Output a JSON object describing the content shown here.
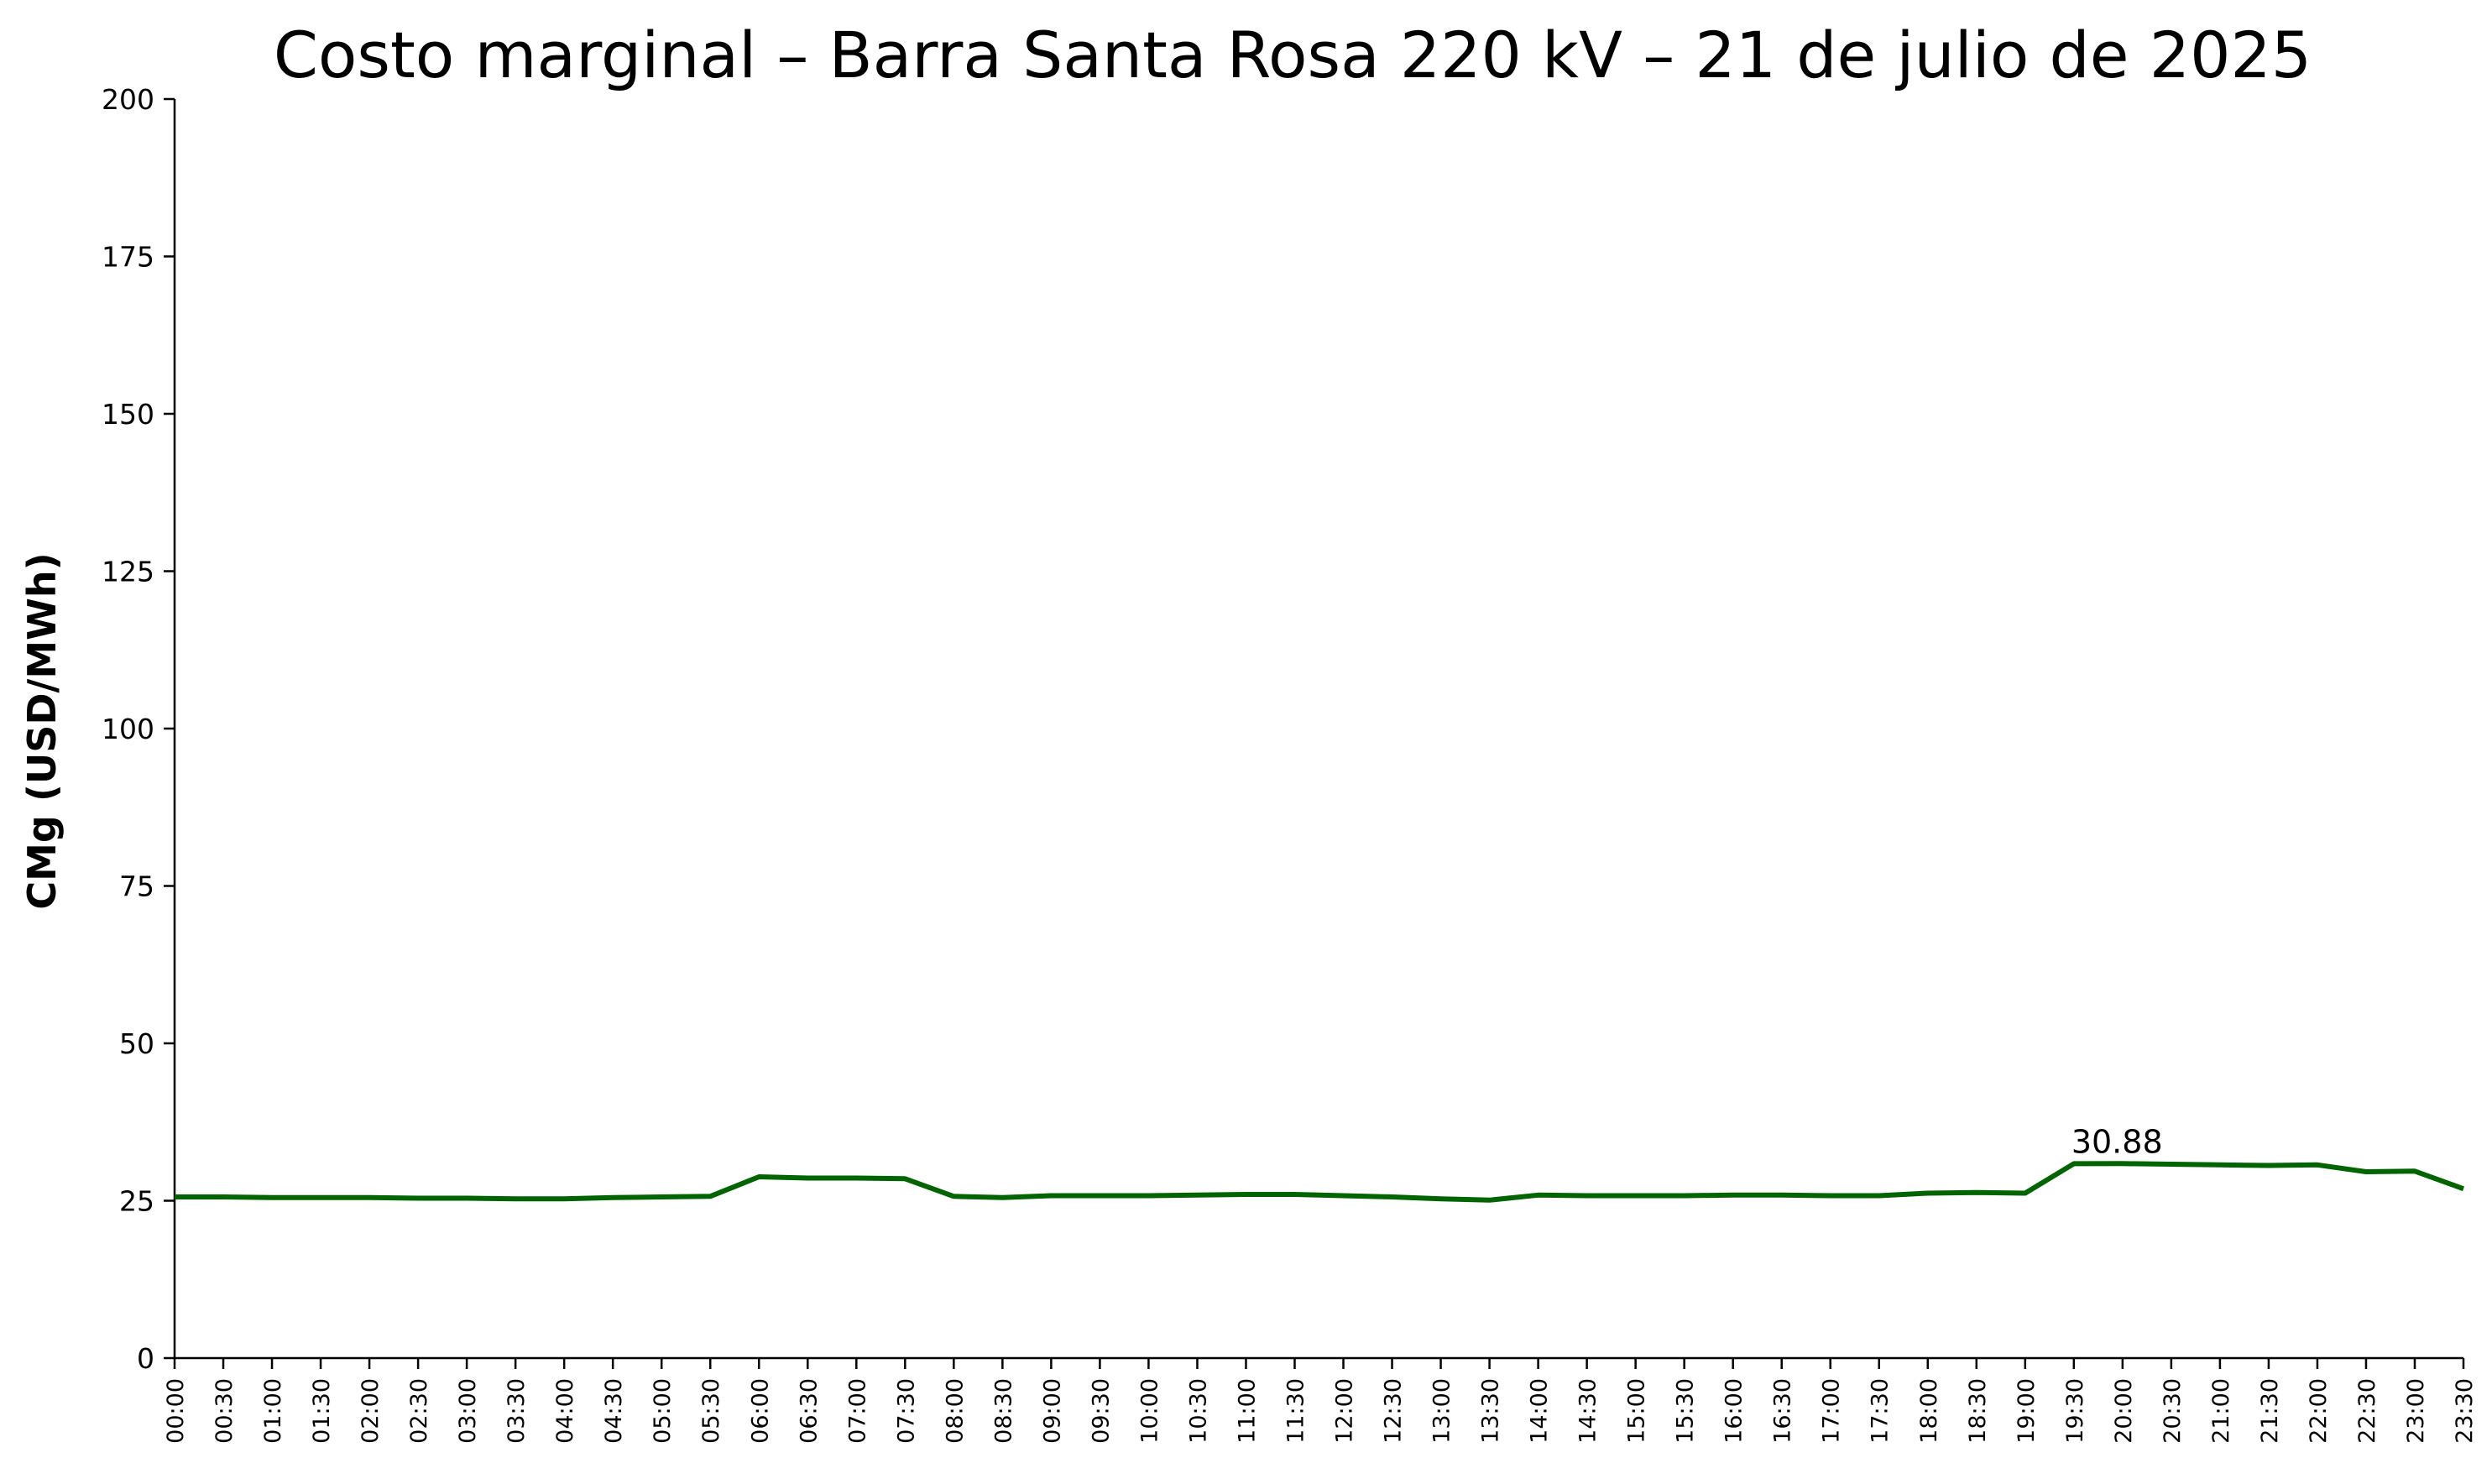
{
  "chart_data": {
    "type": "line",
    "title": "Costo marginal – Barra Santa Rosa 220 kV – 21 de julio de 2025",
    "ylabel": "CMg (USD/MWh)",
    "xlabel": "",
    "ylim": [
      0,
      200
    ],
    "yticks": [
      "0",
      "25",
      "50",
      "75",
      "100",
      "125",
      "150",
      "175",
      "200"
    ],
    "grid": false,
    "line_color": "#006400",
    "categories": [
      "00:00",
      "00:30",
      "01:00",
      "01:30",
      "02:00",
      "02:30",
      "03:00",
      "03:30",
      "04:00",
      "04:30",
      "05:00",
      "05:30",
      "06:00",
      "06:30",
      "07:00",
      "07:30",
      "08:00",
      "08:30",
      "09:00",
      "09:30",
      "10:00",
      "10:30",
      "11:00",
      "11:30",
      "12:00",
      "12:30",
      "13:00",
      "13:30",
      "14:00",
      "14:30",
      "15:00",
      "15:30",
      "16:00",
      "16:30",
      "17:00",
      "17:30",
      "18:00",
      "18:30",
      "19:00",
      "19:30",
      "20:00",
      "20:30",
      "21:00",
      "21:30",
      "22:00",
      "22:30",
      "23:00",
      "23:30"
    ],
    "series": [
      {
        "values": [
          25.6,
          25.6,
          25.5,
          25.5,
          25.5,
          25.4,
          25.4,
          25.3,
          25.3,
          25.5,
          25.6,
          25.7,
          28.8,
          28.6,
          28.6,
          28.5,
          25.7,
          25.5,
          25.8,
          25.8,
          25.8,
          25.9,
          26.0,
          26.0,
          25.8,
          25.6,
          25.3,
          25.1,
          25.9,
          25.8,
          25.8,
          25.8,
          25.9,
          25.9,
          25.8,
          25.8,
          26.2,
          26.3,
          26.2,
          30.88,
          30.9,
          30.8,
          30.7,
          30.6,
          30.7,
          29.6,
          29.7,
          26.9
        ]
      }
    ],
    "annotations": [
      {
        "text": "30.88",
        "x": "19:30",
        "y": 30.88
      }
    ]
  }
}
